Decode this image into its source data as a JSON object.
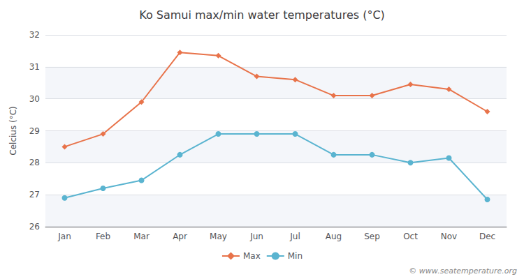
{
  "chart_data": {
    "type": "line",
    "title": "Ko Samui max/min water temperatures (°C)",
    "y_label": "Celcius (°C)",
    "categories": [
      "Jan",
      "Feb",
      "Mar",
      "Apr",
      "May",
      "Jun",
      "Jul",
      "Aug",
      "Sep",
      "Oct",
      "Nov",
      "Dec"
    ],
    "series": [
      {
        "name": "Max",
        "color": "#e8734a",
        "marker": "diamond",
        "line_style": "solid",
        "values": [
          28.5,
          28.9,
          29.9,
          31.45,
          31.35,
          30.7,
          30.6,
          30.1,
          30.1,
          30.45,
          30.3,
          29.6
        ]
      },
      {
        "name": "Min",
        "color": "#5ab4d0",
        "marker": "circle",
        "line_style": "solid",
        "values": [
          26.9,
          27.2,
          27.45,
          28.25,
          28.9,
          28.9,
          28.9,
          28.25,
          28.25,
          28.0,
          28.15,
          26.85
        ]
      }
    ],
    "ylim": [
      26,
      32
    ],
    "yticks": [
      26,
      27,
      28,
      29,
      30,
      31,
      32
    ],
    "grid": true,
    "legend": "bottom",
    "annotations": [
      "© www.seatemperature.org"
    ]
  }
}
